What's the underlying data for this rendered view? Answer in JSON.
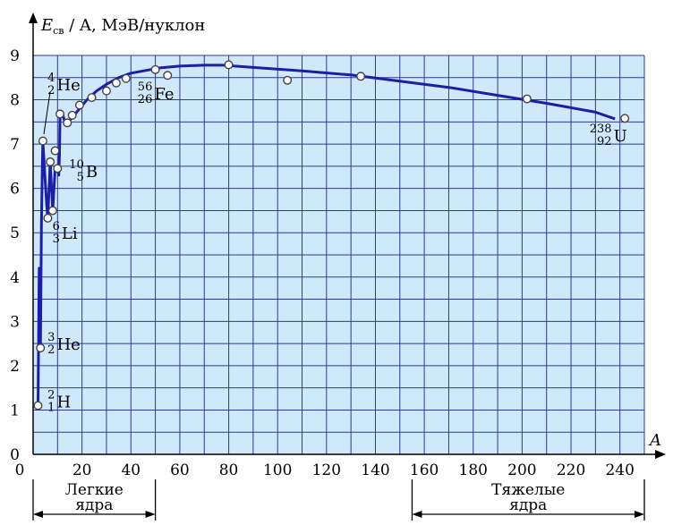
{
  "chart_data": {
    "type": "line",
    "ylabel": {
      "main": "E",
      "sub": "св",
      "rest": " / A, МэВ/нуклон"
    },
    "xlabel": "A",
    "xlim": [
      0,
      250
    ],
    "ylim": [
      0,
      9
    ],
    "x_ticks": [
      "0",
      "20",
      "40",
      "60",
      "80",
      "100",
      "120",
      "140",
      "160",
      "180",
      "200",
      "220",
      "240"
    ],
    "y_ticks": [
      "0",
      "1",
      "2",
      "3",
      "4",
      "5",
      "6",
      "7",
      "8",
      "9"
    ],
    "grid": true,
    "colors": {
      "curve": "#1c1fa6",
      "plot_bg": "#cfe8fa",
      "grid": "#2d3c8c"
    },
    "curve": [
      [
        2,
        1.1
      ],
      [
        2.5,
        4.2
      ],
      [
        3,
        2.4
      ],
      [
        3.4,
        5.2
      ],
      [
        3.8,
        6.6
      ],
      [
        4,
        7.07
      ],
      [
        4.8,
        6.3
      ],
      [
        5.6,
        5.6
      ],
      [
        6,
        5.33
      ],
      [
        7,
        6.6
      ],
      [
        8,
        5.5
      ],
      [
        9,
        6.45
      ],
      [
        10,
        6.45
      ],
      [
        10.5,
        6.3
      ],
      [
        10.8,
        6.8
      ],
      [
        11,
        7.68
      ],
      [
        12,
        7.68
      ],
      [
        13,
        7.5
      ],
      [
        14,
        7.48
      ],
      [
        16,
        7.6
      ],
      [
        19,
        7.8
      ],
      [
        22,
        8.0
      ],
      [
        26,
        8.2
      ],
      [
        30,
        8.35
      ],
      [
        35,
        8.5
      ],
      [
        40,
        8.6
      ],
      [
        46,
        8.66
      ],
      [
        52,
        8.72
      ],
      [
        60,
        8.76
      ],
      [
        70,
        8.78
      ],
      [
        78,
        8.78
      ],
      [
        90,
        8.73
      ],
      [
        110,
        8.65
      ],
      [
        130,
        8.56
      ],
      [
        150,
        8.42
      ],
      [
        170,
        8.28
      ],
      [
        190,
        8.1
      ],
      [
        210,
        7.92
      ],
      [
        230,
        7.72
      ],
      [
        238,
        7.57
      ]
    ],
    "points": [
      [
        2,
        1.1
      ],
      [
        3,
        2.4
      ],
      [
        4,
        7.07
      ],
      [
        6,
        5.33
      ],
      [
        7,
        6.6
      ],
      [
        8,
        5.5
      ],
      [
        9,
        6.85
      ],
      [
        10,
        6.45
      ],
      [
        11,
        7.68
      ],
      [
        14,
        7.48
      ],
      [
        16,
        7.65
      ],
      [
        19,
        7.88
      ],
      [
        24,
        8.05
      ],
      [
        30,
        8.2
      ],
      [
        34,
        8.38
      ],
      [
        38,
        8.48
      ],
      [
        50,
        8.68
      ],
      [
        55,
        8.55
      ],
      [
        80,
        8.79
      ],
      [
        104,
        8.44
      ],
      [
        134,
        8.53
      ],
      [
        202,
        8.02
      ],
      [
        242,
        7.58
      ]
    ],
    "annotations": [
      {
        "mass": "2",
        "charge": "1",
        "symbol": "H",
        "x": 5,
        "y": 1.1
      },
      {
        "mass": "3",
        "charge": "2",
        "symbol": "He",
        "x": 5,
        "y": 2.4
      },
      {
        "mass": "6",
        "charge": "3",
        "symbol": "Li",
        "x": 7,
        "y": 4.9
      },
      {
        "mass": "10",
        "charge": "5",
        "symbol": "B",
        "x": 14,
        "y": 6.3
      },
      {
        "mass": "4",
        "charge": "2",
        "symbol": "He",
        "x": 5,
        "y": 8.25
      },
      {
        "mass": "56",
        "charge": "26",
        "symbol": "Fe",
        "x": 42,
        "y": 8.05
      },
      {
        "mass": "238",
        "charge": "92",
        "symbol": "U",
        "x": 227,
        "y": 7.1
      }
    ],
    "ranges": [
      {
        "label_line1": "Легкие",
        "label_line2": "ядра",
        "from": 0,
        "to": 50
      },
      {
        "label_line1": "Тяжелые",
        "label_line2": "ядра",
        "from": 155,
        "to": 250
      }
    ]
  }
}
